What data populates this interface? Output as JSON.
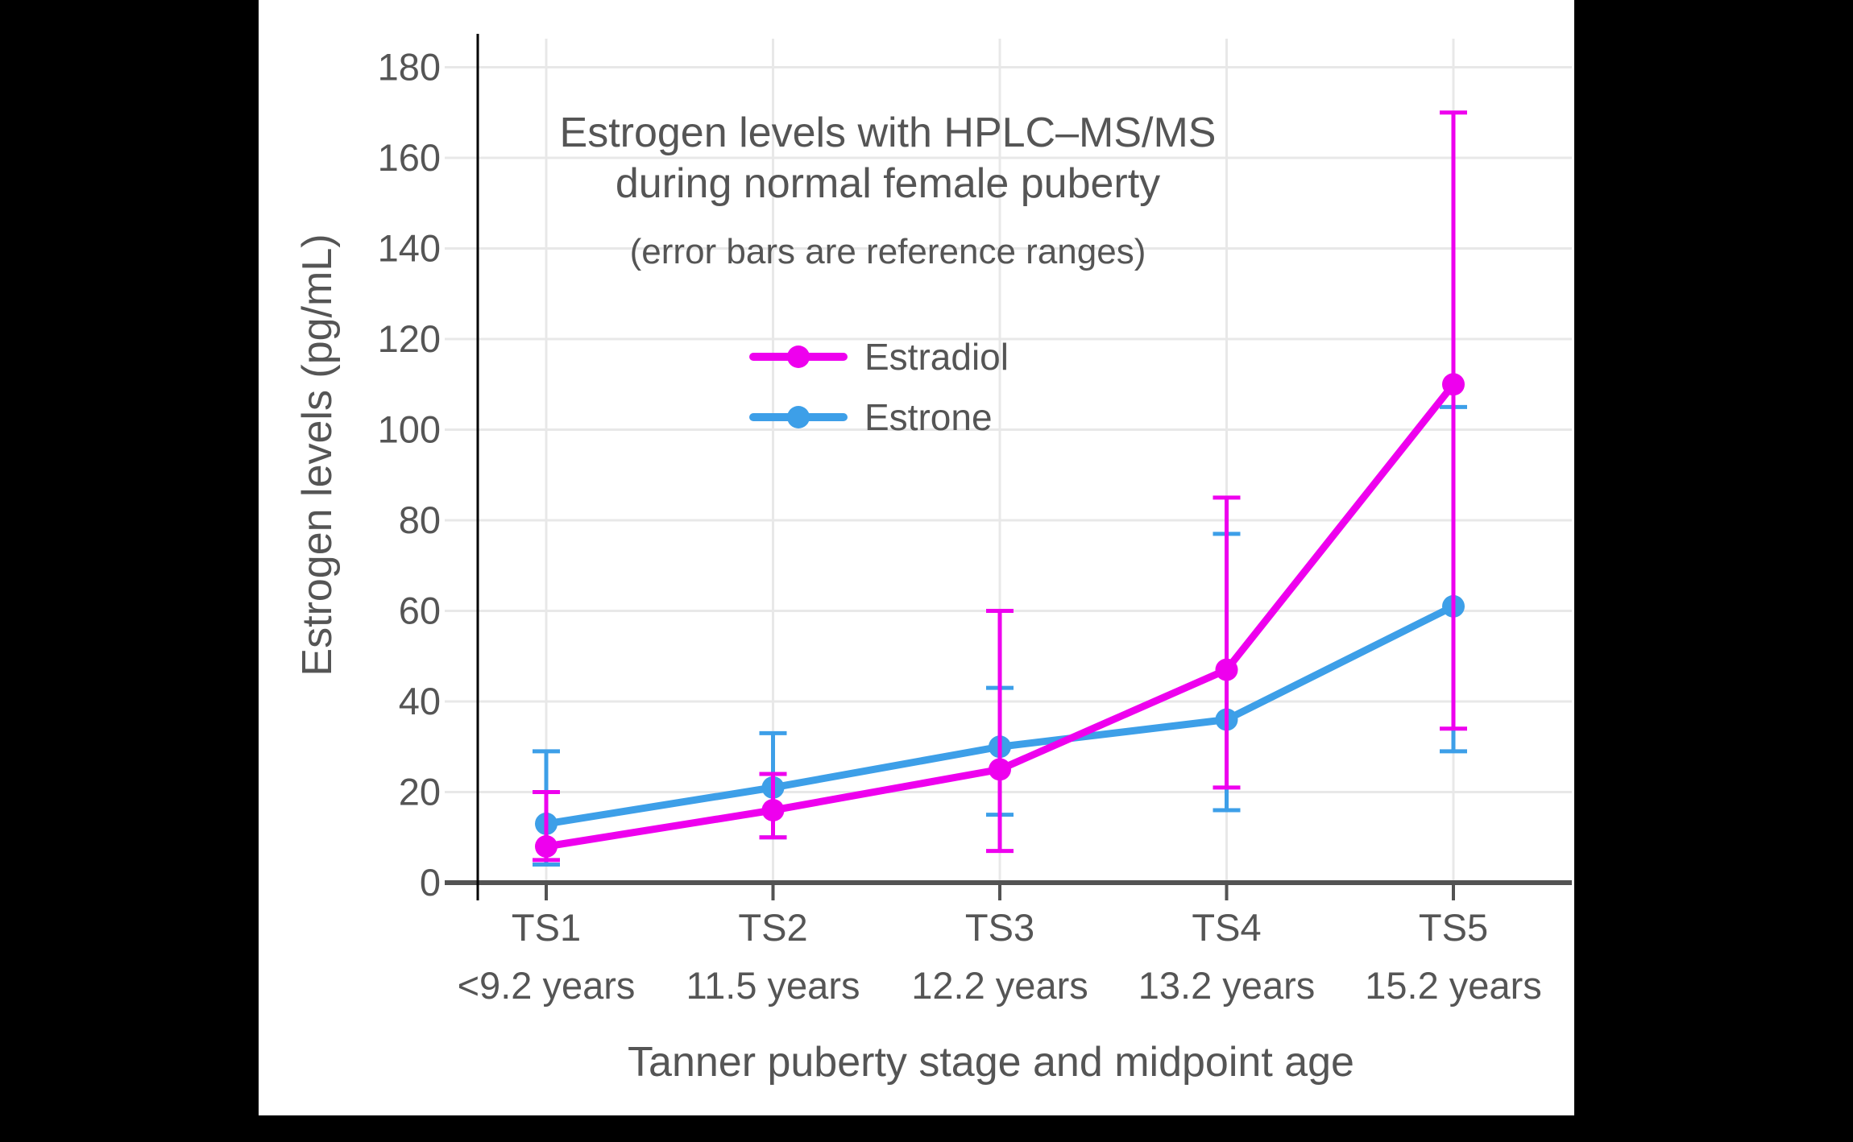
{
  "frame": {
    "background_color": "#000000",
    "panel_color": "#ffffff"
  },
  "chart_data": {
    "type": "line",
    "title": "Estrogen levels with HPLC–MS/MS during normal female puberty",
    "title_lines": [
      "Estrogen levels with HPLC–MS/MS",
      "during normal female puberty"
    ],
    "subtitle": "(error bars are reference ranges)",
    "xlabel": "Tanner puberty stage and midpoint age",
    "ylabel": "Estrogen levels (pg/mL)",
    "categories": [
      "TS1",
      "TS2",
      "TS3",
      "TS4",
      "TS5"
    ],
    "category_sublabels": [
      "<9.2 years",
      "11.5 years",
      "12.2 years",
      "13.2 years",
      "15.2 years"
    ],
    "yticks": [
      0,
      20,
      40,
      60,
      80,
      100,
      120,
      140,
      160,
      180
    ],
    "ylim": [
      0,
      188
    ],
    "grid": true,
    "legend_position": "inside-top-center",
    "error_bar_meaning": "reference ranges",
    "series": [
      {
        "name": "Estradiol",
        "color": "#EE00EE",
        "values": [
          8,
          16,
          25,
          47,
          110
        ],
        "error_low": [
          5,
          10,
          7,
          21,
          34
        ],
        "error_high": [
          20,
          24,
          60,
          85,
          170
        ]
      },
      {
        "name": "Estrone",
        "color": "#3D9FE8",
        "values": [
          13,
          21,
          30,
          36,
          61
        ],
        "error_low": [
          4,
          10,
          15,
          16,
          29
        ],
        "error_high": [
          29,
          33,
          43,
          77,
          105
        ]
      }
    ],
    "style": {
      "grid_color": "#E8E8E8",
      "axis_color": "#535353",
      "yaxis_spine_color": "#000000",
      "text_color": "#555555"
    }
  }
}
